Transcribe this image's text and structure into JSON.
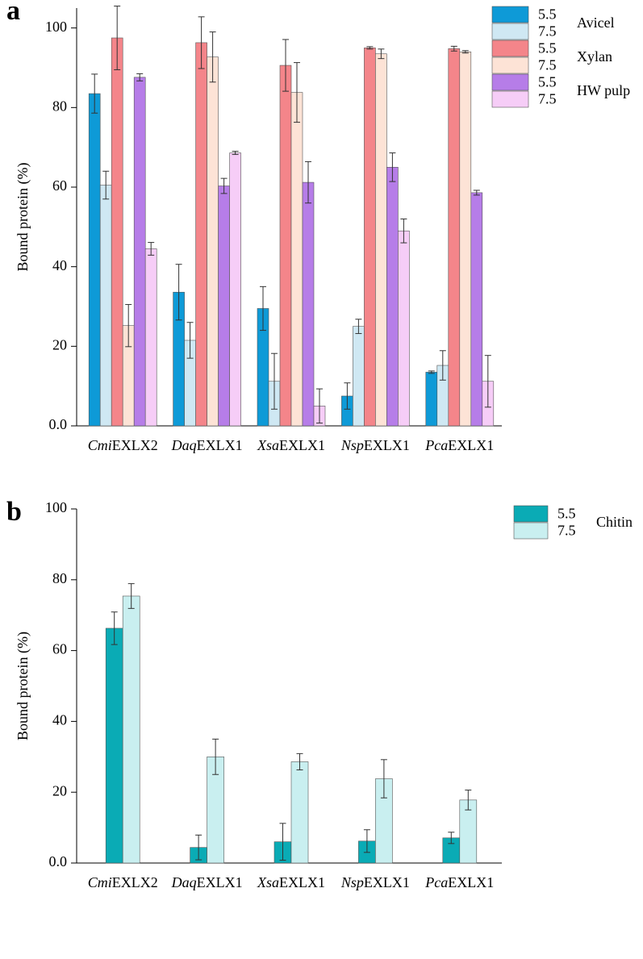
{
  "chart_data": [
    {
      "type": "bar",
      "panel": "a",
      "ylabel": "Bound protein (%)",
      "categories": [
        "CmiEXLX2",
        "DaqEXLX1",
        "XsaEXLX1",
        "NspEXLX1",
        "PcaEXLX1"
      ],
      "ylim": [
        0,
        105
      ],
      "yticks": [
        {
          "value": 0,
          "label": "0.0"
        },
        20,
        40,
        60,
        80,
        100
      ],
      "legend_groups": [
        "Avicel",
        "Xylan",
        "HW pulp"
      ],
      "series": [
        {
          "name": "5.5",
          "color": "#0e9ad7",
          "values": [
            83.5,
            33.6,
            29.5,
            7.5,
            13.5
          ],
          "errors": [
            4.9,
            7,
            5.5,
            3.3,
            0.3
          ]
        },
        {
          "name": "7.5",
          "color": "#cfe8f3",
          "values": [
            60.5,
            21.5,
            11.2,
            25,
            15.2
          ],
          "errors": [
            3.5,
            4.5,
            7,
            1.8,
            3.7
          ]
        },
        {
          "name": "5.5",
          "color": "#f4858a",
          "values": [
            97.5,
            96.3,
            90.6,
            95,
            94.8
          ],
          "errors": [
            8,
            6.5,
            6.5,
            0.3,
            0.6
          ]
        },
        {
          "name": "7.5",
          "color": "#fde3d6",
          "values": [
            25.2,
            92.7,
            83.8,
            93.5,
            94
          ],
          "errors": [
            5.3,
            6.3,
            7.5,
            1.2,
            0.3
          ]
        },
        {
          "name": "5.5",
          "color": "#b67de8",
          "values": [
            87.6,
            60.3,
            61.2,
            65,
            58.6
          ],
          "errors": [
            0.9,
            1.9,
            5.2,
            3.6,
            0.6
          ]
        },
        {
          "name": "7.5",
          "color": "#f6cdf7",
          "values": [
            44.5,
            68.6,
            5,
            49,
            11.2
          ],
          "errors": [
            1.6,
            0.4,
            4.3,
            3,
            6.5
          ]
        }
      ]
    },
    {
      "type": "bar",
      "panel": "b",
      "ylabel": "Bound protein (%)",
      "categories": [
        "CmiEXLX2",
        "DaqEXLX1",
        "XsaEXLX1",
        "NspEXLX1",
        "PcaEXLX1"
      ],
      "ylim": [
        0,
        100
      ],
      "yticks": [
        {
          "value": 0,
          "label": "0.0"
        },
        20,
        40,
        60,
        80,
        100
      ],
      "legend_groups": [
        "Chitin"
      ],
      "series": [
        {
          "name": "5.5",
          "color": "#0aabb5",
          "values": [
            66.3,
            4.4,
            6,
            6.2,
            7.1
          ],
          "errors": [
            4.6,
            3.5,
            5.2,
            3.2,
            1.6
          ]
        },
        {
          "name": "7.5",
          "color": "#c9eff0",
          "values": [
            75.4,
            30,
            28.6,
            23.8,
            17.8
          ],
          "errors": [
            3.5,
            5,
            2.3,
            5.4,
            2.8
          ]
        }
      ]
    }
  ]
}
